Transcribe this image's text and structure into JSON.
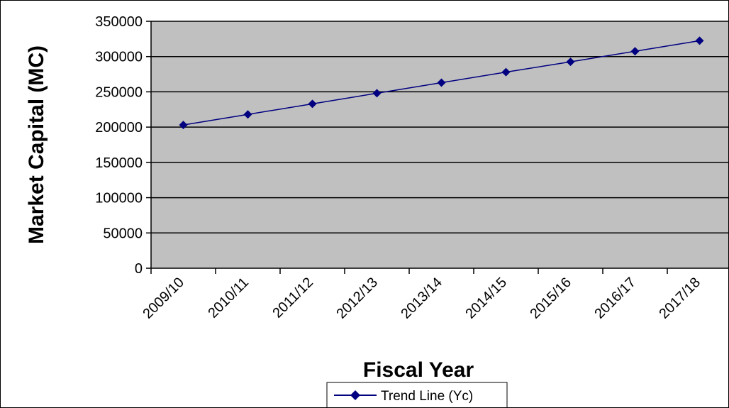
{
  "chart_data": {
    "type": "line",
    "title": "",
    "xlabel": "Fiscal Year",
    "ylabel": "Market Capital (MC)",
    "categories": [
      "2009/10",
      "2010/11",
      "2011/12",
      "2012/13",
      "2013/14",
      "2014/15",
      "2015/16",
      "2016/17",
      "2017/18"
    ],
    "series": [
      {
        "name": "Trend Line (Yc)",
        "values": [
          203000,
          218000,
          233000,
          248000,
          263000,
          278000,
          292500,
          307500,
          322500
        ],
        "color": "#000080",
        "marker": "diamond"
      }
    ],
    "yticks": [
      "0",
      "50000",
      "100000",
      "150000",
      "200000",
      "250000",
      "300000",
      "350000"
    ],
    "ylim": [
      0,
      350000
    ],
    "grid": true,
    "plot_background": "#c0c0c0",
    "legend": "bottom"
  }
}
